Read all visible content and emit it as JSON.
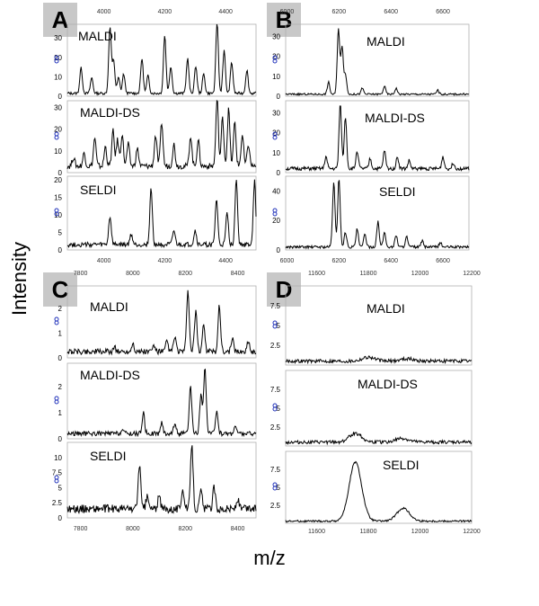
{
  "figure": {
    "y_axis_title": "Intensity",
    "x_axis_title": "m/z"
  },
  "chart_data": [
    {
      "type": "line",
      "panel": "A",
      "x_ticks": [
        4000,
        4200,
        4400
      ],
      "xlim": [
        3880,
        4500
      ],
      "subplots": [
        {
          "name": "MALDI",
          "ylim": [
            0,
            37
          ],
          "y_ticks": [
            0,
            10,
            20,
            30
          ],
          "peaks": [
            [
              3925,
              13
            ],
            [
              3960,
              8
            ],
            [
              4020,
              34
            ],
            [
              4032,
              17
            ],
            [
              4048,
              8
            ],
            [
              4065,
              10
            ],
            [
              4125,
              18
            ],
            [
              4145,
              9
            ],
            [
              4200,
              30
            ],
            [
              4220,
              14
            ],
            [
              4275,
              18
            ],
            [
              4302,
              14
            ],
            [
              4328,
              10
            ],
            [
              4372,
              37
            ],
            [
              4395,
              22
            ],
            [
              4420,
              16
            ],
            [
              4470,
              12
            ]
          ],
          "baseline": 1.5
        },
        {
          "name": "MALDI-DS",
          "ylim": [
            0,
            33
          ],
          "y_ticks": [
            0,
            10,
            20,
            30
          ],
          "peaks": [
            [
              3900,
              4
            ],
            [
              3935,
              6
            ],
            [
              3970,
              13
            ],
            [
              4005,
              9
            ],
            [
              4030,
              16
            ],
            [
              4045,
              12
            ],
            [
              4060,
              15
            ],
            [
              4080,
              10
            ],
            [
              4110,
              8
            ],
            [
              4170,
              14
            ],
            [
              4190,
              20
            ],
            [
              4230,
              10
            ],
            [
              4285,
              14
            ],
            [
              4310,
              12
            ],
            [
              4372,
              31
            ],
            [
              4390,
              22
            ],
            [
              4410,
              26
            ],
            [
              4430,
              20
            ],
            [
              4455,
              14
            ],
            [
              4475,
              10
            ]
          ],
          "baseline": 3
        },
        {
          "name": "SELDI",
          "ylim": [
            0,
            21
          ],
          "y_ticks": [
            0,
            5,
            10,
            15,
            20
          ],
          "peaks": [
            [
              4020,
              8
            ],
            [
              4090,
              3
            ],
            [
              4155,
              16
            ],
            [
              4230,
              4
            ],
            [
              4300,
              4
            ],
            [
              4370,
              13
            ],
            [
              4405,
              9
            ],
            [
              4435,
              19
            ],
            [
              4495,
              18
            ]
          ],
          "baseline": 1.5
        }
      ]
    },
    {
      "type": "line",
      "panel": "B",
      "x_ticks": [
        6000,
        6200,
        6400,
        6600
      ],
      "xlim": [
        5995,
        6700
      ],
      "subplots": [
        {
          "name": "MALDI",
          "ylim": [
            0,
            36
          ],
          "y_ticks": [
            0,
            10,
            20,
            30
          ],
          "peaks": [
            [
              6160,
              6
            ],
            [
              6198,
              33
            ],
            [
              6212,
              24
            ],
            [
              6225,
              10
            ],
            [
              6290,
              3
            ],
            [
              6375,
              4
            ],
            [
              6420,
              3
            ],
            [
              6580,
              2
            ]
          ],
          "baseline": 1
        },
        {
          "name": "MALDI-DS",
          "ylim": [
            0,
            36
          ],
          "y_ticks": [
            0,
            10,
            20,
            30
          ],
          "peaks": [
            [
              6150,
              6
            ],
            [
              6205,
              32
            ],
            [
              6225,
              26
            ],
            [
              6270,
              9
            ],
            [
              6320,
              5
            ],
            [
              6375,
              9
            ],
            [
              6425,
              6
            ],
            [
              6470,
              4
            ],
            [
              6600,
              6
            ],
            [
              6640,
              3
            ]
          ],
          "baseline": 2
        },
        {
          "name": "SELDI",
          "ylim": [
            0,
            50
          ],
          "y_ticks": [
            0,
            20,
            40
          ],
          "peaks": [
            [
              6180,
              44
            ],
            [
              6200,
              47
            ],
            [
              6225,
              10
            ],
            [
              6270,
              12
            ],
            [
              6300,
              9
            ],
            [
              6350,
              17
            ],
            [
              6375,
              10
            ],
            [
              6420,
              8
            ],
            [
              6460,
              7
            ],
            [
              6520,
              4
            ],
            [
              6590,
              3
            ]
          ],
          "baseline": 2
        }
      ]
    },
    {
      "type": "line",
      "panel": "C",
      "x_ticks": [
        7800,
        8000,
        8200,
        8400
      ],
      "xlim": [
        7750,
        8470
      ],
      "subplots": [
        {
          "name": "MALDI",
          "ylim": [
            0,
            2.9
          ],
          "y_ticks": [
            0,
            1,
            2
          ],
          "peaks": [
            [
              7930,
              0.2
            ],
            [
              8000,
              0.35
            ],
            [
              8080,
              0.25
            ],
            [
              8130,
              0.4
            ],
            [
              8160,
              0.6
            ],
            [
              8210,
              2.5
            ],
            [
              8240,
              1.6
            ],
            [
              8270,
              1.1
            ],
            [
              8330,
              1.9
            ],
            [
              8380,
              0.5
            ],
            [
              8440,
              0.4
            ]
          ],
          "baseline": 0.25
        },
        {
          "name": "MALDI-DS",
          "ylim": [
            0,
            2.9
          ],
          "y_ticks": [
            0,
            1,
            2
          ],
          "peaks": [
            [
              7960,
              0.15
            ],
            [
              8040,
              0.8
            ],
            [
              8110,
              0.4
            ],
            [
              8160,
              0.4
            ],
            [
              8220,
              1.8
            ],
            [
              8260,
              1.5
            ],
            [
              8275,
              2.5
            ],
            [
              8320,
              0.9
            ],
            [
              8390,
              0.3
            ]
          ],
          "baseline": 0.2
        },
        {
          "name": "SELDI",
          "ylim": [
            0,
            12.5
          ],
          "y_ticks": [
            0,
            2.5,
            5,
            7.5,
            10
          ],
          "peaks": [
            [
              8025,
              7.5
            ],
            [
              8055,
              2
            ],
            [
              8100,
              2
            ],
            [
              8190,
              3.5
            ],
            [
              8225,
              11
            ],
            [
              8260,
              3
            ],
            [
              8310,
              3.5
            ],
            [
              8400,
              1.5
            ]
          ],
          "baseline": 1.5
        }
      ]
    },
    {
      "type": "line",
      "panel": "D",
      "x_ticks": [
        11600,
        11800,
        12000,
        12200
      ],
      "xlim": [
        11480,
        12200
      ],
      "subplots": [
        {
          "name": "MALDI",
          "ylim": [
            0,
            10
          ],
          "y_ticks": [
            2.5,
            5,
            7.5
          ],
          "peaks": [
            [
              11800,
              0.5
            ],
            [
              11950,
              0.3
            ]
          ],
          "baseline": 0.5
        },
        {
          "name": "MALDI-DS",
          "ylim": [
            0,
            10
          ],
          "y_ticks": [
            2.5,
            5,
            7.5
          ],
          "peaks": [
            [
              11750,
              1.2
            ],
            [
              11930,
              0.5
            ]
          ],
          "baseline": 0.5
        },
        {
          "name": "SELDI",
          "ylim": [
            0,
            10
          ],
          "y_ticks": [
            2.5,
            5,
            7.5
          ],
          "peaks": [
            [
              11750,
              8.2
            ],
            [
              11935,
              1.8
            ]
          ],
          "baseline": 0.3
        }
      ]
    }
  ]
}
